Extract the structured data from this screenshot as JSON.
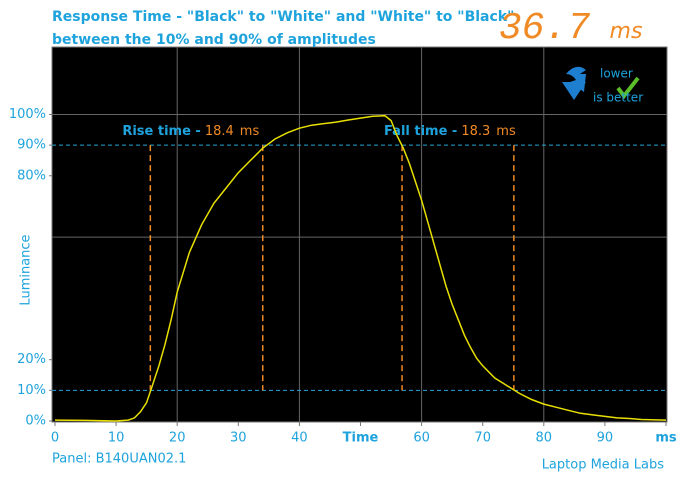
{
  "chart_data": {
    "type": "line",
    "title": "Response Time - \"Black\" to \"White\" and \"White\" to \"Black\"",
    "subtitle": "between the 10% and 90% of amplitudes",
    "readout": {
      "value": 36.7,
      "unit": "ms"
    },
    "badge": [
      "lower",
      "is better"
    ],
    "ylabel": "Luminance",
    "footer_left": "Panel: B140UAN02.1",
    "footer_right": "Laptop Media Labs",
    "xlim": [
      0,
      100
    ],
    "ylim": [
      0,
      122
    ],
    "xticks": [
      0,
      10,
      20,
      30,
      40,
      {
        "value": 50,
        "label": "Time"
      },
      60,
      70,
      80,
      90,
      {
        "value": 100,
        "label": "ms"
      }
    ],
    "yticks": [
      {
        "value": 0,
        "label": "0%"
      },
      {
        "value": 10,
        "label": "10%"
      },
      {
        "value": 20,
        "label": "20%"
      },
      {
        "value": 80,
        "label": "80%"
      },
      {
        "value": 90,
        "label": "90%"
      },
      {
        "value": 100,
        "label": "100%"
      }
    ],
    "x_grid_lines": [
      20,
      40,
      60,
      80
    ],
    "y_grid_lines": [
      60,
      100
    ],
    "reference_lines": [
      10,
      90
    ],
    "reference_color": "#2aa7d8",
    "annotations": [
      {
        "label": "Rise time -",
        "value": 18.4,
        "unit": "ms",
        "from": 15.6,
        "to": 34.0
      },
      {
        "label": "Fall time -",
        "value": 18.3,
        "unit": "ms",
        "from": 56.8,
        "to": 75.1
      }
    ],
    "annotation_color": "#f08a24",
    "x": [
      0,
      5,
      10,
      12,
      13,
      14,
      15,
      16,
      17,
      18,
      19,
      20,
      22,
      24,
      26,
      28,
      30,
      32,
      34,
      36,
      38,
      40,
      42,
      44,
      46,
      48,
      50,
      52,
      54,
      55,
      56,
      57,
      58,
      59,
      60,
      61,
      62,
      63,
      64,
      65,
      66,
      67,
      68,
      69,
      70,
      72,
      74,
      76,
      78,
      80,
      82,
      84,
      86,
      88,
      90,
      92,
      94,
      96,
      100
    ],
    "series": [
      {
        "name": "Luminance",
        "color": "#e8e000",
        "values": [
          0.3,
          0.2,
          0,
          0.3,
          1,
          3,
          6,
          12,
          18,
          25,
          33,
          42,
          55,
          64,
          71,
          76,
          81,
          85,
          89,
          92,
          94,
          95.5,
          96.5,
          97,
          97.5,
          98.2,
          98.8,
          99.4,
          99.6,
          98,
          93,
          89,
          84,
          78,
          72,
          65,
          58,
          51,
          44,
          38,
          33,
          28,
          24,
          20.5,
          18,
          14,
          11.5,
          9,
          7,
          5.5,
          4.5,
          3.5,
          2.5,
          2,
          1.5,
          1,
          0.8,
          0.5,
          0.3
        ]
      }
    ]
  }
}
